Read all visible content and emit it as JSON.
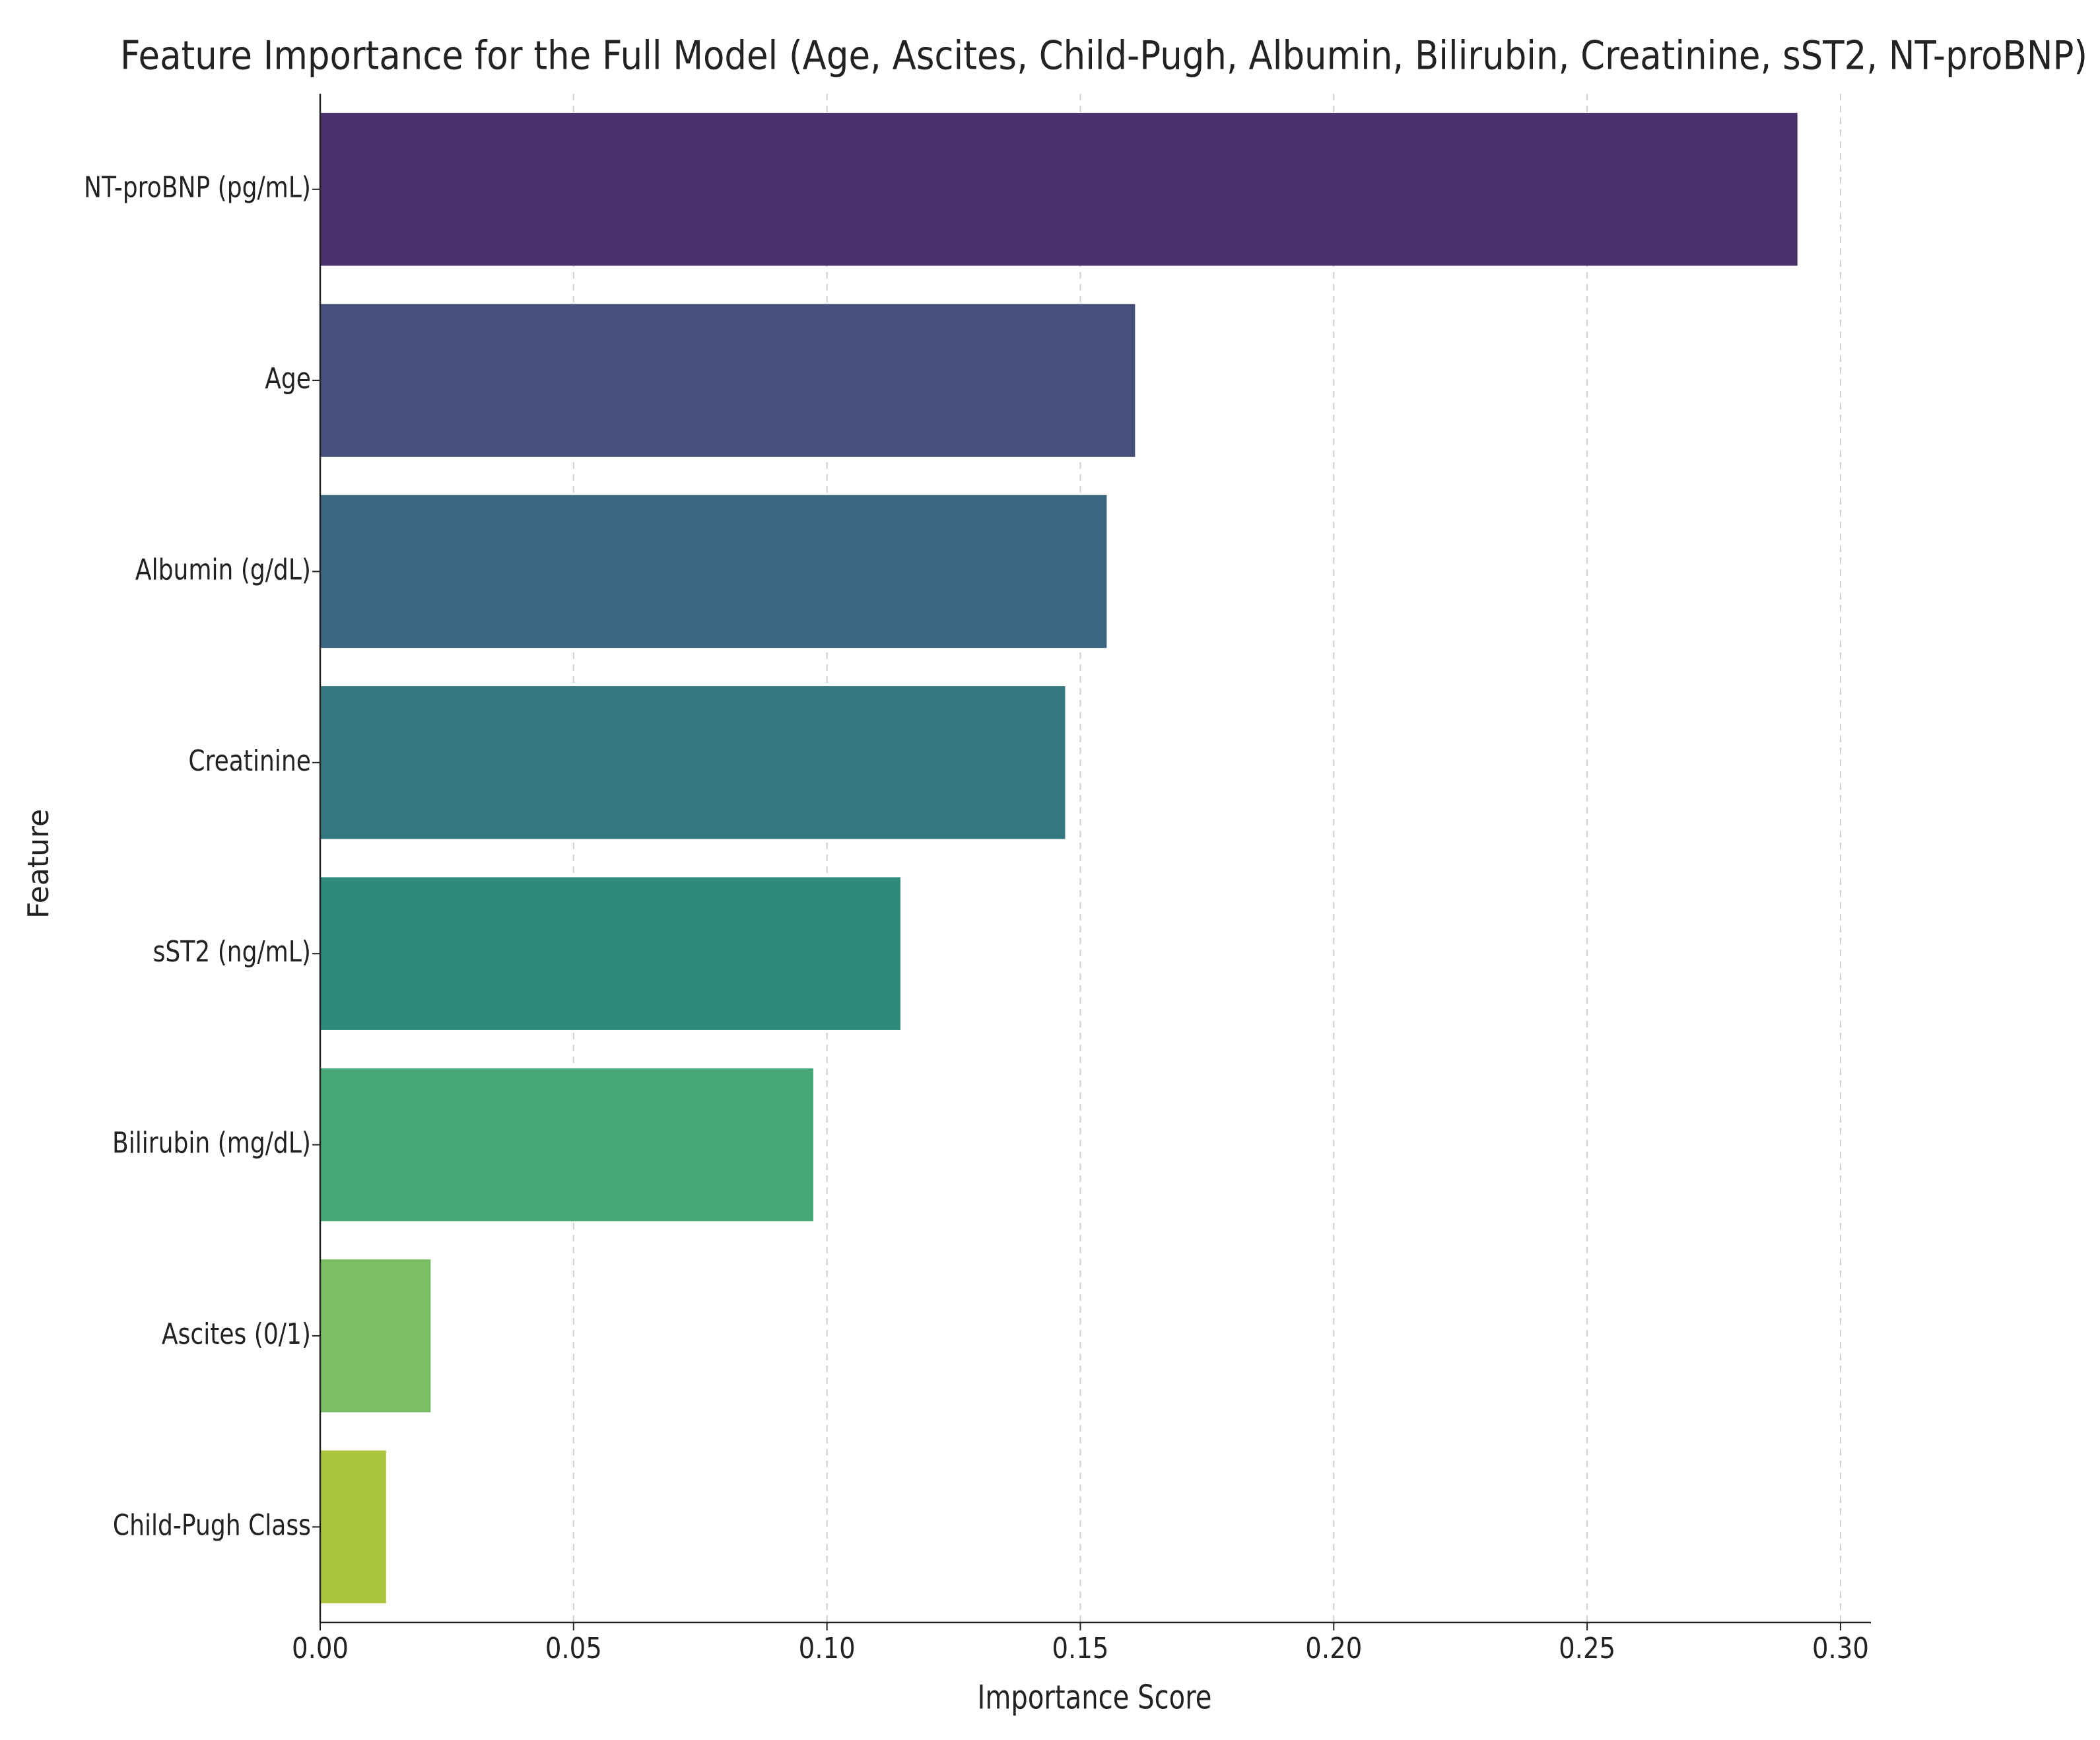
{
  "chart_data": {
    "type": "bar",
    "orientation": "horizontal",
    "title": "Feature Importance for the Full Model (Age, Ascites, Child-Pugh, Albumin, Bilirubin, Creatinine, sST2, NT-proBNP)",
    "x_label": "Importance Score",
    "y_label": "Feature",
    "categories": [
      "NT-proBNP (pg/mL)",
      "Age",
      "Albumin (g/dL)",
      "Creatinine",
      "sST2 (ng/mL)",
      "Bilirubin (mg/dL)",
      "Ascites (0/1)",
      "Child-Pugh Class"
    ],
    "values": [
      0.2915,
      0.1608,
      0.1552,
      0.147,
      0.1145,
      0.0973,
      0.0218,
      0.013
    ],
    "colors": [
      "#4a2f6b",
      "#46507c",
      "#3c6580",
      "#34787f",
      "#2e8b7b",
      "#47a777",
      "#7abf65",
      "#abc63e"
    ],
    "xlim": [
      0,
      0.306
    ],
    "xticks": [
      {
        "value": 0,
        "label": "0.00"
      },
      {
        "value": 0.05,
        "label": "0.05"
      },
      {
        "value": 0.1,
        "label": "0.10"
      },
      {
        "value": 0.15,
        "label": "0.15"
      },
      {
        "value": 0.2,
        "label": "0.20"
      },
      {
        "value": 0.25,
        "label": "0.25"
      },
      {
        "value": 0.3,
        "label": "0.30"
      }
    ],
    "grid": true
  }
}
